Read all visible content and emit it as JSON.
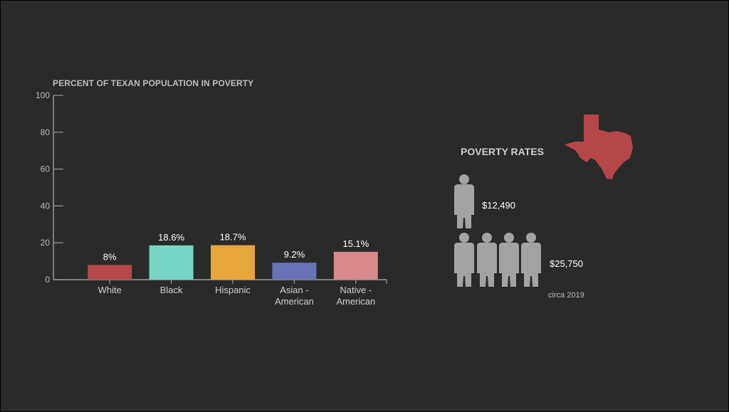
{
  "chart_data": {
    "type": "bar",
    "title": "PERCENT OF TEXAN POPULATION IN POVERTY",
    "categories": [
      [
        "White"
      ],
      [
        "Black"
      ],
      [
        "Hispanic"
      ],
      [
        "Asian -",
        "American"
      ],
      [
        "Native -",
        "American"
      ]
    ],
    "values": [
      8,
      18.6,
      18.7,
      9.2,
      15.1
    ],
    "value_labels": [
      "8%",
      "18.6%",
      "18.7%",
      "9.2%",
      "15.1%"
    ],
    "colors": [
      "#b5474a",
      "#78d6c6",
      "#e8a53a",
      "#6a72b8",
      "#d9898b"
    ],
    "ylim": [
      0,
      100
    ],
    "yticks": [
      0,
      20,
      40,
      60,
      80,
      100
    ],
    "grid": false
  },
  "poverty_rates": {
    "title": "POVERTY RATES",
    "single_person_amount": "$12,490",
    "family_of_four_amount": "$25,750",
    "note": "circa 2019",
    "state_color": "#b5474a",
    "figure_color": "#a3a3a3"
  }
}
